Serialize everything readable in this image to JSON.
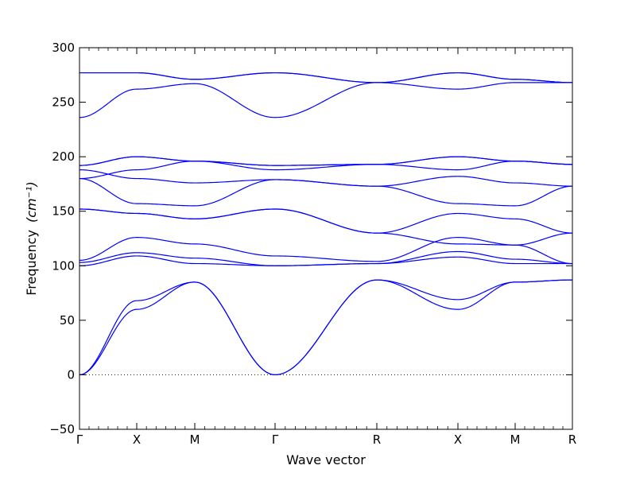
{
  "chart_data": {
    "type": "line",
    "xlabel": "Wave vector",
    "ylabel": "Frequency",
    "ylabel_unit": "(cm⁻¹)",
    "ylim": [
      -50,
      300
    ],
    "yticks": [
      -50,
      0,
      50,
      100,
      150,
      200,
      250,
      300
    ],
    "grid": false,
    "zero_line": {
      "y": 0,
      "style": "dotted"
    },
    "line_color": "#0000ff",
    "kpath": [
      "Γ",
      "X",
      "M",
      "Γ",
      "R",
      "X",
      "M",
      "R"
    ],
    "segments": [
      {
        "from": "Γ",
        "to": "X",
        "curves": [
          [
            0,
            60
          ],
          [
            0,
            68
          ],
          [
            100,
            109
          ],
          [
            103,
            112
          ],
          [
            105,
            126
          ],
          [
            152,
            148
          ],
          [
            152,
            148
          ],
          [
            180,
            157
          ],
          [
            180,
            188
          ],
          [
            188,
            180
          ],
          [
            192,
            200
          ],
          [
            192,
            200
          ],
          [
            236,
            262
          ],
          [
            277,
            277
          ],
          [
            277,
            277
          ]
        ]
      },
      {
        "from": "X",
        "to": "M",
        "curves": [
          [
            60,
            85
          ],
          [
            68,
            85
          ],
          [
            109,
            102
          ],
          [
            112,
            107
          ],
          [
            126,
            120
          ],
          [
            148,
            143
          ],
          [
            148,
            143
          ],
          [
            157,
            155
          ],
          [
            188,
            196
          ],
          [
            180,
            176
          ],
          [
            200,
            196
          ],
          [
            200,
            196
          ],
          [
            262,
            267
          ],
          [
            277,
            271
          ],
          [
            277,
            271
          ]
        ]
      },
      {
        "from": "M",
        "to": "Γ",
        "curves": [
          [
            85,
            0
          ],
          [
            85,
            0
          ],
          [
            102,
            100
          ],
          [
            107,
            100
          ],
          [
            120,
            109
          ],
          [
            143,
            152
          ],
          [
            143,
            152
          ],
          [
            155,
            179
          ],
          [
            196,
            188
          ],
          [
            176,
            179
          ],
          [
            196,
            192
          ],
          [
            196,
            192
          ],
          [
            267,
            236
          ],
          [
            271,
            277
          ],
          [
            271,
            277
          ]
        ]
      },
      {
        "from": "Γ",
        "to": "R",
        "curves": [
          [
            0,
            87
          ],
          [
            0,
            87
          ],
          [
            100,
            102
          ],
          [
            100,
            102
          ],
          [
            109,
            104
          ],
          [
            152,
            130
          ],
          [
            152,
            130
          ],
          [
            179,
            173
          ],
          [
            188,
            193
          ],
          [
            179,
            173
          ],
          [
            192,
            193
          ],
          [
            192,
            193
          ],
          [
            236,
            268
          ],
          [
            277,
            268
          ],
          [
            277,
            268
          ]
        ]
      },
      {
        "from": "R",
        "to": "X",
        "curves": [
          [
            87,
            60
          ],
          [
            87,
            69
          ],
          [
            102,
            108
          ],
          [
            102,
            113
          ],
          [
            104,
            126
          ],
          [
            130,
            148
          ],
          [
            130,
            120
          ],
          [
            173,
            157
          ],
          [
            193,
            188
          ],
          [
            173,
            182
          ],
          [
            193,
            200
          ],
          [
            193,
            200
          ],
          [
            268,
            262
          ],
          [
            268,
            277
          ],
          [
            268,
            277
          ]
        ]
      },
      {
        "from": "X",
        "to": "M",
        "curves": [
          [
            60,
            85
          ],
          [
            69,
            85
          ],
          [
            108,
            102
          ],
          [
            113,
            106
          ],
          [
            126,
            119
          ],
          [
            148,
            143
          ],
          [
            120,
            119
          ],
          [
            157,
            155
          ],
          [
            188,
            196
          ],
          [
            182,
            176
          ],
          [
            200,
            196
          ],
          [
            200,
            196
          ],
          [
            262,
            268
          ],
          [
            277,
            271
          ],
          [
            277,
            271
          ]
        ]
      },
      {
        "from": "M",
        "to": "R",
        "curves": [
          [
            85,
            87
          ],
          [
            85,
            87
          ],
          [
            102,
            102
          ],
          [
            106,
            102
          ],
          [
            119,
            102
          ],
          [
            143,
            130
          ],
          [
            119,
            130
          ],
          [
            155,
            173
          ],
          [
            196,
            193
          ],
          [
            176,
            173
          ],
          [
            196,
            193
          ],
          [
            196,
            193
          ],
          [
            268,
            268
          ],
          [
            271,
            268
          ],
          [
            271,
            268
          ]
        ]
      }
    ]
  }
}
